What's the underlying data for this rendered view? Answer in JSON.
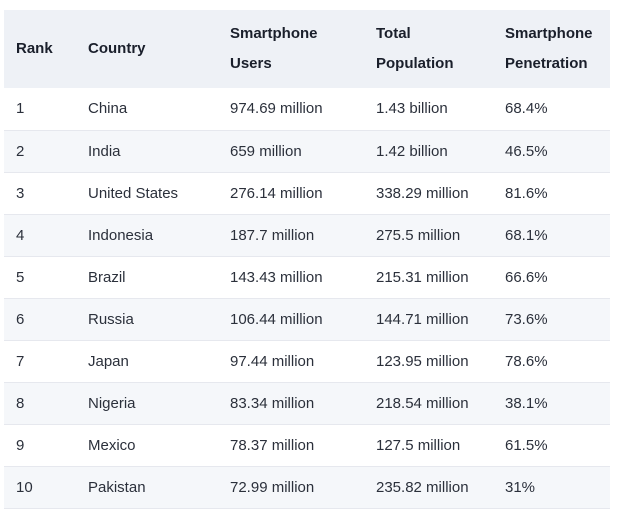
{
  "chart_data": {
    "type": "table",
    "columns": [
      "Rank",
      "Country",
      "Smartphone Users",
      "Total Population",
      "Smartphone Penetration"
    ],
    "rows": [
      [
        "1",
        "China",
        "974.69 million",
        "1.43 billion",
        "68.4%"
      ],
      [
        "2",
        "India",
        "659 million",
        "1.42 billion",
        "46.5%"
      ],
      [
        "3",
        "United States",
        "276.14 million",
        "338.29 million",
        "81.6%"
      ],
      [
        "4",
        "Indonesia",
        "187.7 million",
        "275.5 million",
        "68.1%"
      ],
      [
        "5",
        "Brazil",
        "143.43 million",
        "215.31 million",
        "66.6%"
      ],
      [
        "6",
        "Russia",
        "106.44 million",
        "144.71 million",
        "73.6%"
      ],
      [
        "7",
        "Japan",
        "97.44 million",
        "123.95 million",
        "78.6%"
      ],
      [
        "8",
        "Nigeria",
        "83.34 million",
        "218.54 million",
        "38.1%"
      ],
      [
        "9",
        "Mexico",
        "78.37 million",
        "127.5 million",
        "61.5%"
      ],
      [
        "10",
        "Pakistan",
        "72.99 million",
        "235.82 million",
        "31%"
      ]
    ]
  },
  "header": {
    "rank": "Rank",
    "country": "Country",
    "users_line1": "Smartphone",
    "users_line2": "Users",
    "population_line1": "Total",
    "population_line2": "Population",
    "penetration_line1": "Smartphone",
    "penetration_line2": "Penetration"
  }
}
